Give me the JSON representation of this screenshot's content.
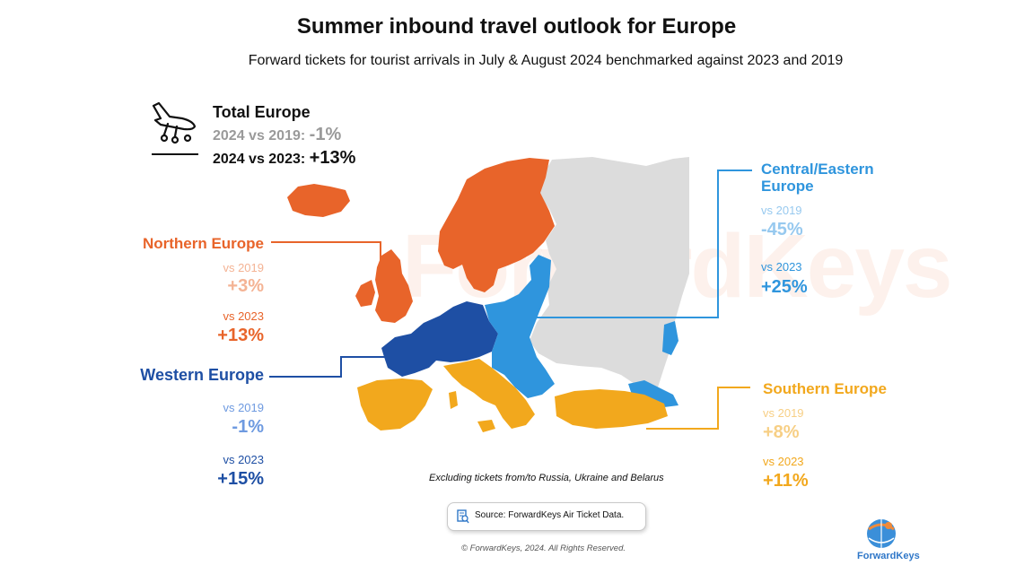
{
  "header": {
    "title": "Summer inbound travel outlook for Europe",
    "subtitle": "Forward tickets for tourist arrivals in July & August 2024 benchmarked against 2023 and 2019"
  },
  "total": {
    "title": "Total Europe",
    "vs2019_label": "2024 vs 2019: ",
    "vs2019_value": "-1%",
    "vs2023_label": "2024 vs 2023: ",
    "vs2023_value": "+13%",
    "icon": "plane-landing-icon"
  },
  "regions": {
    "northern": {
      "name": "Northern Europe",
      "vs2019_label": "vs 2019",
      "vs2019_value": "+3%",
      "vs2023_label": "vs 2023",
      "vs2023_value": "+13%",
      "color": "#e8642a"
    },
    "western": {
      "name": "Western Europe",
      "vs2019_label": "vs 2019",
      "vs2019_value": "-1%",
      "vs2023_label": "vs 2023",
      "vs2023_value": "+15%",
      "color": "#1e4fa4"
    },
    "central_eastern": {
      "name_line1": "Central/Eastern",
      "name_line2": "Europe",
      "vs2019_label": "vs 2019",
      "vs2019_value": "-45%",
      "vs2023_label": "vs 2023",
      "vs2023_value": "+25%",
      "color": "#2f95dd"
    },
    "southern": {
      "name": "Southern Europe",
      "vs2019_label": "vs 2019",
      "vs2019_value": "+8%",
      "vs2023_label": "vs 2023",
      "vs2023_value": "+11%",
      "color": "#f2a81d"
    }
  },
  "map_colors": {
    "excluded": "#dcdcdc"
  },
  "footer": {
    "note": "Excluding tickets from/to Russia, Ukraine and Belarus",
    "source": "Source: ForwardKeys Air Ticket Data.",
    "copyright": "© ForwardKeys, 2024. All Rights Reserved.",
    "brand": "ForwardKeys",
    "watermark": "ForwardKeys"
  }
}
